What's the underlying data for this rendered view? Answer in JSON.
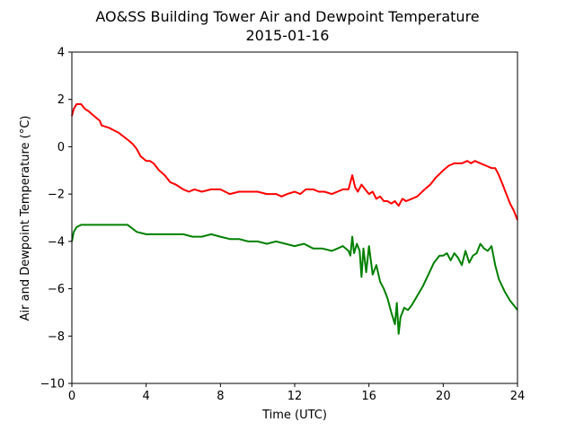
{
  "chart_data": {
    "type": "line",
    "title": "AO&SS Building Tower Air and Dewpoint Temperature",
    "subtitle": "2015-01-16",
    "xlabel": "Time (UTC)",
    "ylabel": "Air and Dewpoint Temperature (°C)",
    "xlim": [
      0,
      24
    ],
    "ylim": [
      -10,
      4
    ],
    "xticks": [
      0,
      4,
      8,
      12,
      16,
      20,
      24
    ],
    "yticks": [
      -10,
      -8,
      -6,
      -4,
      -2,
      0,
      2,
      4
    ],
    "grid": false,
    "legend": "none",
    "series": [
      {
        "color": "#ff0000",
        "x": [
          0,
          0.1,
          0.25,
          0.5,
          0.7,
          0.9,
          1.2,
          1.5,
          1.6,
          2.0,
          2.5,
          3.0,
          3.3,
          3.5,
          3.7,
          4.0,
          4.2,
          4.4,
          4.7,
          5.0,
          5.3,
          5.6,
          6.0,
          6.3,
          6.6,
          7.0,
          7.5,
          8.0,
          8.5,
          9.0,
          9.5,
          10.0,
          10.5,
          11.0,
          11.3,
          11.6,
          12.0,
          12.3,
          12.6,
          13.0,
          13.3,
          13.6,
          14.0,
          14.3,
          14.6,
          14.9,
          15.1,
          15.25,
          15.4,
          15.6,
          15.8,
          16.0,
          16.2,
          16.4,
          16.6,
          16.8,
          17.0,
          17.2,
          17.4,
          17.6,
          17.8,
          18.0,
          18.3,
          18.6,
          19.0,
          19.3,
          19.6,
          20.0,
          20.3,
          20.6,
          21.0,
          21.3,
          21.5,
          21.7,
          22.0,
          22.3,
          22.6,
          22.8,
          23.0,
          23.2,
          23.4,
          23.6,
          23.8,
          24.0
        ],
        "values": [
          1.3,
          1.6,
          1.8,
          1.8,
          1.6,
          1.5,
          1.3,
          1.1,
          0.9,
          0.8,
          0.6,
          0.3,
          0.1,
          -0.1,
          -0.4,
          -0.6,
          -0.6,
          -0.7,
          -1.0,
          -1.2,
          -1.5,
          -1.6,
          -1.8,
          -1.9,
          -1.8,
          -1.9,
          -1.8,
          -1.8,
          -2.0,
          -1.9,
          -1.9,
          -1.9,
          -2.0,
          -2.0,
          -2.1,
          -2.0,
          -1.9,
          -2.0,
          -1.8,
          -1.8,
          -1.9,
          -1.9,
          -2.0,
          -1.9,
          -1.8,
          -1.8,
          -1.2,
          -1.7,
          -1.9,
          -1.6,
          -1.8,
          -2.0,
          -1.9,
          -2.2,
          -2.1,
          -2.3,
          -2.3,
          -2.4,
          -2.3,
          -2.5,
          -2.2,
          -2.3,
          -2.2,
          -2.1,
          -1.8,
          -1.6,
          -1.3,
          -1.0,
          -0.8,
          -0.7,
          -0.7,
          -0.6,
          -0.7,
          -0.6,
          -0.7,
          -0.8,
          -0.9,
          -0.9,
          -1.2,
          -1.6,
          -2.0,
          -2.4,
          -2.7,
          -3.1
        ]
      },
      {
        "color": "#008000",
        "x": [
          0,
          0.1,
          0.25,
          0.5,
          1.0,
          1.5,
          2.0,
          2.5,
          3.0,
          3.5,
          4.0,
          4.5,
          5.0,
          5.5,
          6.0,
          6.5,
          7.0,
          7.5,
          8.0,
          8.5,
          9.0,
          9.5,
          10.0,
          10.5,
          11.0,
          11.5,
          12.0,
          12.5,
          13.0,
          13.5,
          14.0,
          14.3,
          14.6,
          14.9,
          15.0,
          15.1,
          15.2,
          15.35,
          15.5,
          15.6,
          15.7,
          15.85,
          16.0,
          16.2,
          16.4,
          16.6,
          16.8,
          17.0,
          17.2,
          17.4,
          17.5,
          17.6,
          17.7,
          17.9,
          18.1,
          18.3,
          18.6,
          18.9,
          19.2,
          19.5,
          19.8,
          20.0,
          20.2,
          20.4,
          20.6,
          20.8,
          21.0,
          21.2,
          21.4,
          21.6,
          21.8,
          22.0,
          22.2,
          22.4,
          22.6,
          22.8,
          23.0,
          23.3,
          23.6,
          24.0
        ],
        "values": [
          -4.0,
          -3.6,
          -3.4,
          -3.3,
          -3.3,
          -3.3,
          -3.3,
          -3.3,
          -3.3,
          -3.6,
          -3.7,
          -3.7,
          -3.7,
          -3.7,
          -3.7,
          -3.8,
          -3.8,
          -3.7,
          -3.8,
          -3.9,
          -3.9,
          -4.0,
          -4.0,
          -4.1,
          -4.0,
          -4.1,
          -4.2,
          -4.1,
          -4.3,
          -4.3,
          -4.4,
          -4.3,
          -4.2,
          -4.4,
          -4.6,
          -3.8,
          -4.5,
          -4.1,
          -4.4,
          -5.5,
          -4.3,
          -5.3,
          -4.2,
          -5.4,
          -5.0,
          -5.7,
          -6.0,
          -6.4,
          -7.0,
          -7.5,
          -6.6,
          -7.9,
          -7.2,
          -6.8,
          -6.9,
          -6.7,
          -6.3,
          -5.9,
          -5.4,
          -4.9,
          -4.6,
          -4.6,
          -4.5,
          -4.8,
          -4.5,
          -4.7,
          -5.0,
          -4.4,
          -4.9,
          -4.6,
          -4.5,
          -4.1,
          -4.3,
          -4.4,
          -4.2,
          -5.0,
          -5.6,
          -6.1,
          -6.5,
          -6.9
        ]
      }
    ]
  }
}
